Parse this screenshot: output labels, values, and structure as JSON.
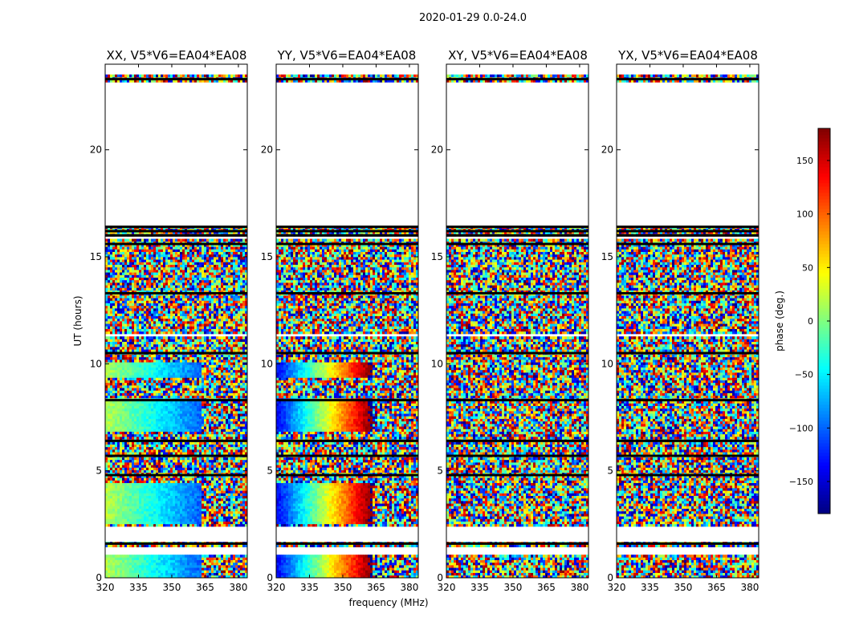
{
  "figure": {
    "suptitle": "2020-01-29 0.0-24.0"
  },
  "colors": {
    "background": "#ffffff",
    "axis": "#000000",
    "flag_band": "#000000"
  },
  "chart_data": {
    "type": "heatmap",
    "title": "2020-01-29 0.0-24.0",
    "xlabel": "frequency (MHz)",
    "ylabel": "UT (hours)",
    "xlim": [
      320,
      384
    ],
    "ylim": [
      0,
      24
    ],
    "xticks": [
      320,
      335,
      350,
      365,
      380
    ],
    "yticks": [
      0,
      5,
      10,
      15,
      20
    ],
    "colorscale": "jet",
    "colorbar": {
      "label": "phase (deg.)",
      "range": [
        -180,
        180
      ],
      "ticks": [
        -150,
        -100,
        -50,
        0,
        50,
        100,
        150
      ]
    },
    "no_data_ranges_hours": [
      [
        1.1,
        1.5
      ],
      [
        1.7,
        2.35
      ],
      [
        10.4,
        10.5
      ],
      [
        11.25,
        11.35
      ],
      [
        15.8,
        16.0
      ],
      [
        16.5,
        23.2
      ],
      [
        23.5,
        24.0
      ]
    ],
    "flag_lines_hours": [
      23.3,
      16.4,
      16.2,
      16.0,
      15.6,
      13.3,
      10.5,
      8.3,
      6.4,
      5.7,
      4.8,
      1.6
    ],
    "panels": [
      {
        "title": "XX, V5*V6=EA04*EA08",
        "pattern": "coherent",
        "phase_offset_deg": 20,
        "phase_slope_deg_per_mhz": -2.8,
        "coherent_upper_mhz": 363,
        "coherent_time_ranges_hours": [
          [
            0,
            1.1
          ],
          [
            2.5,
            4.4
          ],
          [
            6.8,
            8.4
          ],
          [
            9.4,
            10.1
          ]
        ]
      },
      {
        "title": "YY, V5*V6=EA04*EA08",
        "pattern": "coherent",
        "phase_offset_deg": -140,
        "phase_slope_deg_per_mhz": 7.5,
        "coherent_upper_mhz": 363,
        "coherent_time_ranges_hours": [
          [
            0,
            1.1
          ],
          [
            2.5,
            4.4
          ],
          [
            6.8,
            8.4
          ],
          [
            9.4,
            10.1
          ]
        ]
      },
      {
        "title": "XY, V5*V6=EA04*EA08",
        "pattern": "noise",
        "phase_offset_deg": 0,
        "phase_slope_deg_per_mhz": 0,
        "coherent_upper_mhz": 320,
        "coherent_time_ranges_hours": []
      },
      {
        "title": "YX, V5*V6=EA04*EA08",
        "pattern": "noise",
        "phase_offset_deg": 0,
        "phase_slope_deg_per_mhz": 0,
        "coherent_upper_mhz": 320,
        "coherent_time_ranges_hours": []
      }
    ]
  }
}
